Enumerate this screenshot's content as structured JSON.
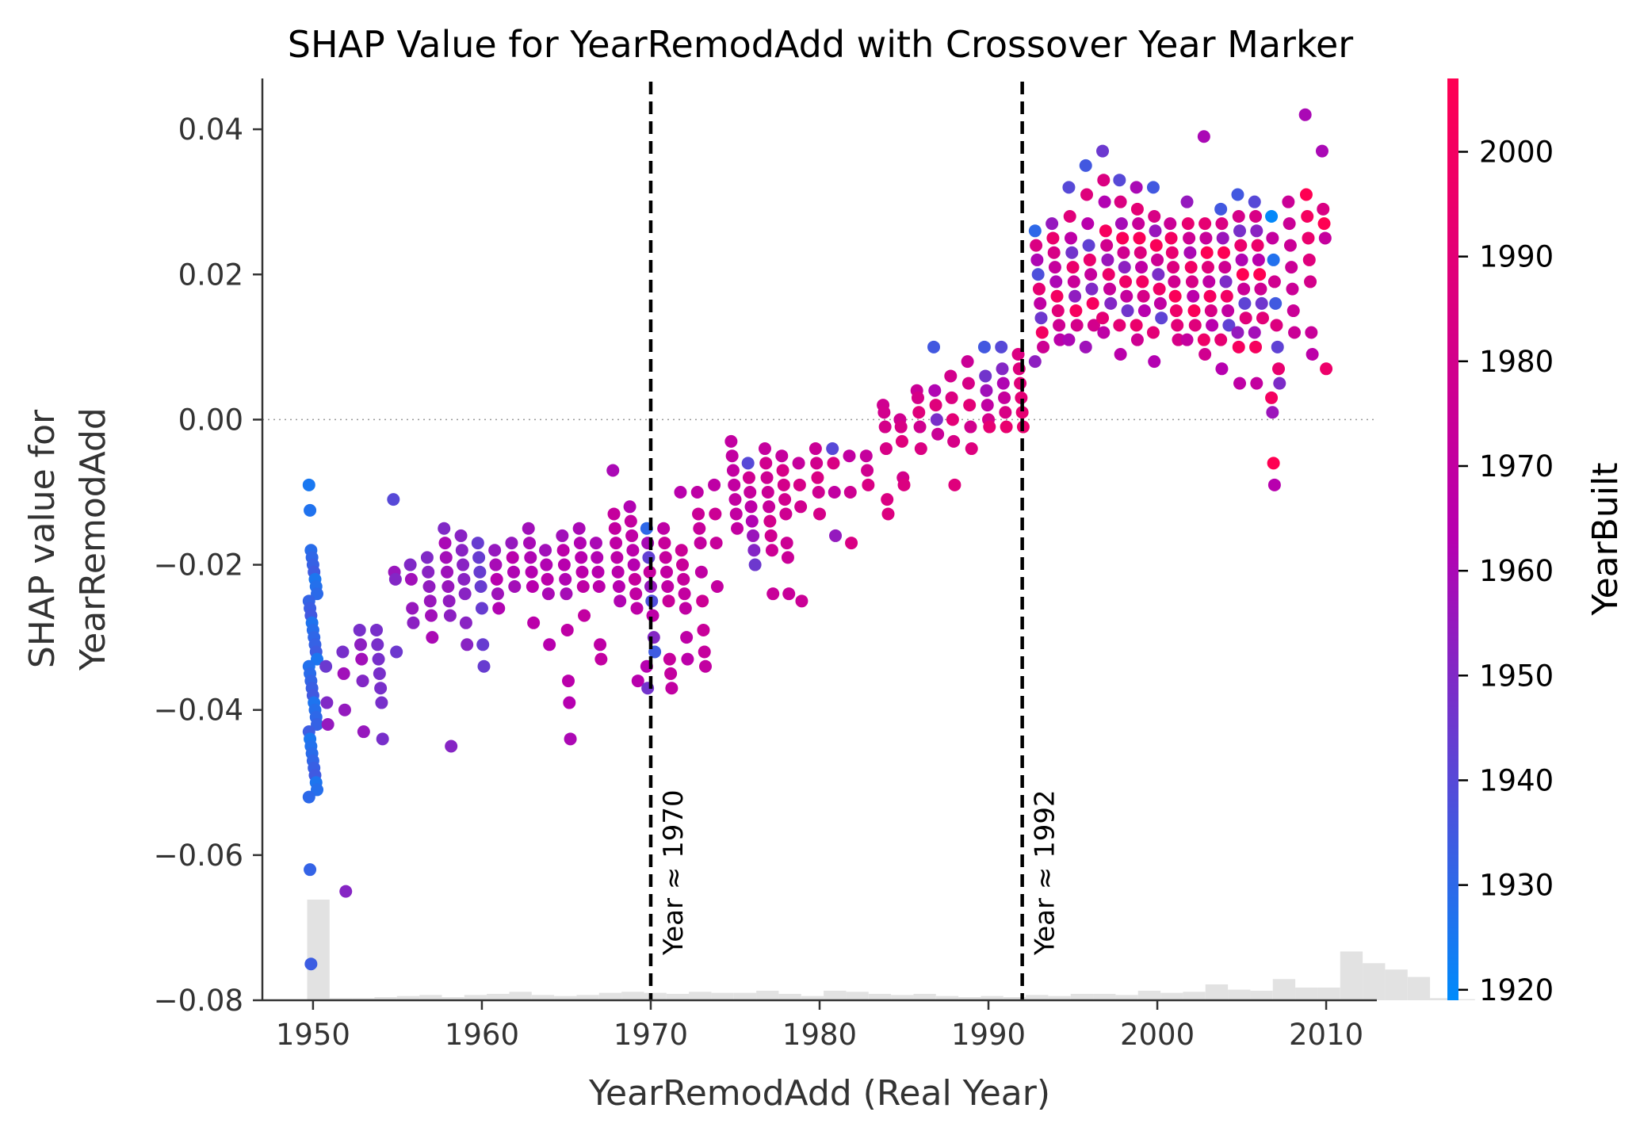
{
  "chart_data": {
    "type": "scatter",
    "title": "SHAP Value for YearRemodAdd with Crossover Year Marker",
    "xlabel": "YearRemodAdd (Real Year)",
    "ylabel": [
      "SHAP value for",
      "YearRemodAdd"
    ],
    "xlim": [
      1947,
      2013
    ],
    "ylim": [
      -0.08,
      0.047
    ],
    "xticks": [
      1950,
      1960,
      1970,
      1980,
      1990,
      2000,
      2010
    ],
    "yticks": [
      0.04,
      0.02,
      0.0,
      -0.02,
      -0.04,
      -0.06,
      -0.08
    ],
    "ytick_labels": [
      "0.04",
      "0.02",
      "0.00",
      "−0.02",
      "−0.04",
      "−0.06",
      "−0.08"
    ],
    "zero_line": true,
    "colorbar": {
      "label": "YearBuilt",
      "range": [
        1919,
        2007
      ],
      "ticks": [
        2000,
        1990,
        1980,
        1970,
        1960,
        1950,
        1940,
        1930,
        1920
      ],
      "colors": {
        "low": "#008bfb",
        "mid": "#b600b0",
        "high": "#ff0052"
      }
    },
    "markers": [
      {
        "x": 1970,
        "label": "Year ≈ 1970"
      },
      {
        "x": 1992,
        "label": "Year ≈ 1992"
      }
    ],
    "histogram": {
      "color": "#e2e2e2",
      "bin_width": 1.33,
      "start": 1950,
      "counts": [
        0.95,
        0.02,
        0.02,
        0.03,
        0.04,
        0.05,
        0.03,
        0.05,
        0.06,
        0.08,
        0.05,
        0.04,
        0.05,
        0.07,
        0.08,
        0.07,
        0.06,
        0.08,
        0.07,
        0.07,
        0.09,
        0.06,
        0.04,
        0.09,
        0.08,
        0.06,
        0.05,
        0.06,
        0.04,
        0.03,
        0.04,
        0.03,
        0.05,
        0.04,
        0.06,
        0.06,
        0.05,
        0.09,
        0.07,
        0.08,
        0.15,
        0.1,
        0.09,
        0.2,
        0.12,
        0.12,
        0.46,
        0.35,
        0.29,
        0.22,
        0.02,
        0.01
      ]
    },
    "points": [
      {
        "x": 1950,
        "ys": [
          -0.009,
          -0.0125,
          -0.018,
          -0.019,
          -0.02,
          -0.021,
          -0.022,
          -0.023,
          -0.024,
          -0.025,
          -0.026,
          -0.027,
          -0.028,
          -0.029,
          -0.03,
          -0.031,
          -0.032,
          -0.033,
          -0.034,
          -0.035,
          -0.036,
          -0.037,
          -0.038,
          -0.039,
          -0.04,
          -0.041,
          -0.042,
          -0.043,
          -0.044,
          -0.045,
          -0.046,
          -0.047,
          -0.048,
          -0.049,
          -0.05,
          -0.051,
          -0.052,
          -0.062,
          -0.075
        ],
        "c": [
          1925,
          1935
        ]
      },
      {
        "x": 1951,
        "ys": [
          -0.034,
          -0.039,
          -0.042
        ],
        "c": [
          1945,
          1955
        ]
      },
      {
        "x": 1952,
        "ys": [
          -0.032,
          -0.035,
          -0.04,
          -0.065
        ],
        "c": [
          1948,
          1958
        ]
      },
      {
        "x": 1953,
        "ys": [
          -0.029,
          -0.031,
          -0.033,
          -0.036,
          -0.043
        ],
        "c": [
          1948,
          1958
        ]
      },
      {
        "x": 1954,
        "ys": [
          -0.029,
          -0.031,
          -0.033,
          -0.035,
          -0.037,
          -0.039,
          -0.044
        ],
        "c": [
          1948,
          1958
        ]
      },
      {
        "x": 1955,
        "ys": [
          -0.011,
          -0.021,
          -0.022,
          -0.032
        ],
        "c": [
          1940,
          1956
        ]
      },
      {
        "x": 1956,
        "ys": [
          -0.02,
          -0.022,
          -0.026,
          -0.028
        ],
        "c": [
          1950,
          1958
        ]
      },
      {
        "x": 1957,
        "ys": [
          -0.019,
          -0.021,
          -0.023,
          -0.025,
          -0.027,
          -0.03
        ],
        "c": [
          1950,
          1960
        ]
      },
      {
        "x": 1958,
        "ys": [
          -0.015,
          -0.017,
          -0.019,
          -0.021,
          -0.023,
          -0.025,
          -0.027,
          -0.045
        ],
        "c": [
          1950,
          1960
        ]
      },
      {
        "x": 1959,
        "ys": [
          -0.016,
          -0.018,
          -0.02,
          -0.022,
          -0.024,
          -0.028,
          -0.031
        ],
        "c": [
          1952,
          1962
        ]
      },
      {
        "x": 1960,
        "ys": [
          -0.017,
          -0.019,
          -0.021,
          -0.023,
          -0.026,
          -0.031,
          -0.034
        ],
        "c": [
          1944,
          1962
        ]
      },
      {
        "x": 1961,
        "ys": [
          -0.018,
          -0.02,
          -0.022,
          -0.024,
          -0.026
        ],
        "c": [
          1955,
          1964
        ]
      },
      {
        "x": 1962,
        "ys": [
          -0.017,
          -0.019,
          -0.021,
          -0.023
        ],
        "c": [
          1955,
          1965
        ]
      },
      {
        "x": 1963,
        "ys": [
          -0.015,
          -0.017,
          -0.019,
          -0.021,
          -0.023,
          -0.028
        ],
        "c": [
          1958,
          1966
        ]
      },
      {
        "x": 1964,
        "ys": [
          -0.018,
          -0.02,
          -0.022,
          -0.024,
          -0.031
        ],
        "c": [
          1958,
          1966
        ]
      },
      {
        "x": 1965,
        "ys": [
          -0.016,
          -0.018,
          -0.02,
          -0.022,
          -0.024,
          -0.029,
          -0.036,
          -0.039,
          -0.044
        ],
        "c": [
          1958,
          1968
        ]
      },
      {
        "x": 1966,
        "ys": [
          -0.015,
          -0.017,
          -0.019,
          -0.021,
          -0.023,
          -0.027
        ],
        "c": [
          1960,
          1970
        ]
      },
      {
        "x": 1967,
        "ys": [
          -0.017,
          -0.019,
          -0.021,
          -0.023,
          -0.031,
          -0.033
        ],
        "c": [
          1960,
          1970
        ]
      },
      {
        "x": 1968,
        "ys": [
          -0.007,
          -0.013,
          -0.015,
          -0.017,
          -0.019,
          -0.021,
          -0.023,
          -0.025
        ],
        "c": [
          1960,
          1972
        ]
      },
      {
        "x": 1969,
        "ys": [
          -0.012,
          -0.014,
          -0.016,
          -0.018,
          -0.02,
          -0.022,
          -0.024,
          -0.026,
          -0.036
        ],
        "c": [
          1962,
          1972
        ]
      },
      {
        "x": 1970,
        "ys": [
          -0.015,
          -0.017,
          -0.019,
          -0.021,
          -0.023,
          -0.025,
          -0.027,
          -0.03,
          -0.032,
          -0.034,
          -0.037
        ],
        "c": [
          1930,
          1972
        ]
      },
      {
        "x": 1971,
        "ys": [
          -0.015,
          -0.017,
          -0.019,
          -0.021,
          -0.023,
          -0.025,
          -0.033,
          -0.035,
          -0.037
        ],
        "c": [
          1968,
          1974
        ]
      },
      {
        "x": 1972,
        "ys": [
          -0.01,
          -0.018,
          -0.02,
          -0.022,
          -0.024,
          -0.026,
          -0.03,
          -0.033
        ],
        "c": [
          1965,
          1975
        ]
      },
      {
        "x": 1973,
        "ys": [
          -0.01,
          -0.013,
          -0.015,
          -0.017,
          -0.021,
          -0.025,
          -0.029,
          -0.032,
          -0.034
        ],
        "c": [
          1968,
          1976
        ]
      },
      {
        "x": 1974,
        "ys": [
          -0.009,
          -0.013,
          -0.017,
          -0.023
        ],
        "c": [
          1968,
          1976
        ]
      },
      {
        "x": 1975,
        "ys": [
          -0.003,
          -0.005,
          -0.007,
          -0.009,
          -0.011,
          -0.013,
          -0.015
        ],
        "c": [
          1970,
          1978
        ]
      },
      {
        "x": 1976,
        "ys": [
          -0.006,
          -0.008,
          -0.01,
          -0.012,
          -0.014,
          -0.016,
          -0.018,
          -0.02
        ],
        "c": [
          1940,
          1978
        ]
      },
      {
        "x": 1977,
        "ys": [
          -0.004,
          -0.006,
          -0.008,
          -0.01,
          -0.012,
          -0.014,
          -0.016,
          -0.018,
          -0.024
        ],
        "c": [
          1972,
          1980
        ]
      },
      {
        "x": 1978,
        "ys": [
          -0.005,
          -0.007,
          -0.009,
          -0.011,
          -0.013,
          -0.017,
          -0.019,
          -0.024
        ],
        "c": [
          1972,
          1982
        ]
      },
      {
        "x": 1979,
        "ys": [
          -0.006,
          -0.009,
          -0.012,
          -0.025
        ],
        "c": [
          1972,
          1982
        ]
      },
      {
        "x": 1980,
        "ys": [
          -0.004,
          -0.006,
          -0.008,
          -0.01,
          -0.013
        ],
        "c": [
          1975,
          1984
        ]
      },
      {
        "x": 1981,
        "ys": [
          -0.004,
          -0.006,
          -0.01,
          -0.016
        ],
        "c": [
          1940,
          1984
        ]
      },
      {
        "x": 1982,
        "ys": [
          -0.005,
          -0.01,
          -0.017
        ],
        "c": [
          1970,
          1984
        ]
      },
      {
        "x": 1983,
        "ys": [
          -0.005,
          -0.007,
          -0.009
        ],
        "c": [
          1972,
          1984
        ]
      },
      {
        "x": 1984,
        "ys": [
          0.002,
          0.001,
          -0.001,
          -0.004,
          -0.011,
          -0.013
        ],
        "c": [
          1978,
          1986
        ]
      },
      {
        "x": 1985,
        "ys": [
          0.0,
          -0.001,
          -0.003,
          -0.008,
          -0.009
        ],
        "c": [
          1978,
          1988
        ]
      },
      {
        "x": 1986,
        "ys": [
          0.004,
          0.003,
          0.001,
          -0.001,
          -0.004
        ],
        "c": [
          1975,
          1988
        ]
      },
      {
        "x": 1987,
        "ys": [
          0.01,
          0.004,
          0.002,
          0.0,
          -0.002
        ],
        "c": [
          1935,
          1988
        ]
      },
      {
        "x": 1988,
        "ys": [
          0.006,
          0.003,
          0.0,
          -0.003,
          -0.009
        ],
        "c": [
          1980,
          1990
        ]
      },
      {
        "x": 1989,
        "ys": [
          0.008,
          0.005,
          0.002,
          -0.001,
          -0.004
        ],
        "c": [
          1975,
          1990
        ]
      },
      {
        "x": 1990,
        "ys": [
          0.01,
          0.006,
          0.004,
          0.002,
          0.0,
          -0.001
        ],
        "c": [
          1935,
          1992
        ]
      },
      {
        "x": 1991,
        "ys": [
          0.01,
          0.007,
          0.005,
          0.003,
          0.001,
          -0.001
        ],
        "c": [
          1940,
          1994
        ]
      },
      {
        "x": 1992,
        "ys": [
          0.009,
          0.007,
          0.005,
          0.003,
          0.001,
          -0.001
        ],
        "c": [
          1985,
          1994
        ]
      },
      {
        "x": 1993,
        "ys": [
          0.026,
          0.024,
          0.022,
          0.02,
          0.018,
          0.016,
          0.014,
          0.012,
          0.01,
          0.008
        ],
        "c": [
          1930,
          2000
        ]
      },
      {
        "x": 1994,
        "ys": [
          0.027,
          0.025,
          0.023,
          0.021,
          0.019,
          0.017,
          0.015,
          0.013,
          0.011
        ],
        "c": [
          1955,
          2000
        ]
      },
      {
        "x": 1995,
        "ys": [
          0.032,
          0.028,
          0.025,
          0.023,
          0.021,
          0.019,
          0.017,
          0.015,
          0.013,
          0.011
        ],
        "c": [
          1940,
          2002
        ]
      },
      {
        "x": 1996,
        "ys": [
          0.035,
          0.031,
          0.027,
          0.024,
          0.022,
          0.02,
          0.018,
          0.016,
          0.013,
          0.01
        ],
        "c": [
          1935,
          2002
        ]
      },
      {
        "x": 1997,
        "ys": [
          0.037,
          0.033,
          0.03,
          0.026,
          0.024,
          0.022,
          0.02,
          0.018,
          0.016,
          0.014,
          0.012
        ],
        "c": [
          1945,
          2002
        ]
      },
      {
        "x": 1998,
        "ys": [
          0.033,
          0.03,
          0.027,
          0.025,
          0.023,
          0.021,
          0.019,
          0.017,
          0.015,
          0.013,
          0.009
        ],
        "c": [
          1940,
          2004
        ]
      },
      {
        "x": 1999,
        "ys": [
          0.032,
          0.029,
          0.027,
          0.025,
          0.023,
          0.021,
          0.019,
          0.017,
          0.015,
          0.013,
          0.011
        ],
        "c": [
          1960,
          2004
        ]
      },
      {
        "x": 2000,
        "ys": [
          0.032,
          0.028,
          0.026,
          0.024,
          0.022,
          0.02,
          0.018,
          0.016,
          0.014,
          0.012,
          0.008
        ],
        "c": [
          1935,
          2004
        ]
      },
      {
        "x": 2001,
        "ys": [
          0.027,
          0.025,
          0.023,
          0.021,
          0.019,
          0.017,
          0.015,
          0.013,
          0.011
        ],
        "c": [
          1975,
          2004
        ]
      },
      {
        "x": 2002,
        "ys": [
          0.03,
          0.027,
          0.025,
          0.023,
          0.021,
          0.019,
          0.017,
          0.015,
          0.013,
          0.011
        ],
        "c": [
          1955,
          2004
        ]
      },
      {
        "x": 2003,
        "ys": [
          0.039,
          0.027,
          0.025,
          0.023,
          0.021,
          0.019,
          0.017,
          0.015,
          0.013,
          0.011,
          0.009
        ],
        "c": [
          1960,
          2006
        ]
      },
      {
        "x": 2004,
        "ys": [
          0.029,
          0.027,
          0.025,
          0.023,
          0.021,
          0.019,
          0.017,
          0.015,
          0.013,
          0.011,
          0.007
        ],
        "c": [
          1935,
          2006
        ]
      },
      {
        "x": 2005,
        "ys": [
          0.031,
          0.028,
          0.026,
          0.024,
          0.022,
          0.02,
          0.018,
          0.016,
          0.014,
          0.012,
          0.01,
          0.005
        ],
        "c": [
          1935,
          2008
        ]
      },
      {
        "x": 2006,
        "ys": [
          0.03,
          0.028,
          0.026,
          0.024,
          0.022,
          0.02,
          0.018,
          0.016,
          0.014,
          0.012,
          0.01,
          0.005
        ],
        "c": [
          1940,
          2008
        ]
      },
      {
        "x": 2007,
        "ys": [
          0.028,
          0.025,
          0.022,
          0.019,
          0.016,
          0.013,
          0.01,
          0.007,
          0.005,
          0.003,
          0.001,
          -0.006,
          -0.009
        ],
        "c": [
          1920,
          2008
        ]
      },
      {
        "x": 2008,
        "ys": [
          0.03,
          0.027,
          0.024,
          0.021,
          0.018,
          0.015,
          0.012
        ],
        "c": [
          1975,
          2008
        ]
      },
      {
        "x": 2009,
        "ys": [
          0.042,
          0.031,
          0.028,
          0.025,
          0.022,
          0.019,
          0.012,
          0.009
        ],
        "c": [
          1960,
          2008
        ]
      },
      {
        "x": 2010,
        "ys": [
          0.037,
          0.029,
          0.027,
          0.025,
          0.007
        ],
        "c": [
          1960,
          2008
        ]
      }
    ]
  }
}
